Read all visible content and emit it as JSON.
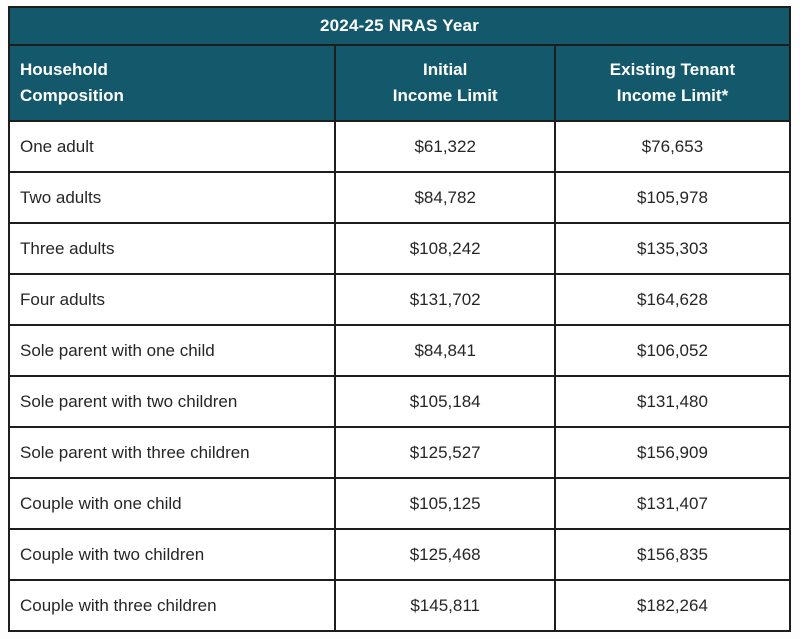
{
  "table": {
    "title": "2024-25 NRAS Year",
    "columns": [
      {
        "label": "Household\nComposition"
      },
      {
        "label": "Initial\nIncome Limit"
      },
      {
        "label": "Existing Tenant\nIncome Limit*"
      }
    ],
    "rows": [
      {
        "household": "One adult",
        "initial": "$61,322",
        "existing": "$76,653"
      },
      {
        "household": "Two adults",
        "initial": "$84,782",
        "existing": "$105,978"
      },
      {
        "household": "Three adults",
        "initial": "$108,242",
        "existing": "$135,303"
      },
      {
        "household": "Four adults",
        "initial": "$131,702",
        "existing": "$164,628"
      },
      {
        "household": "Sole parent with one child",
        "initial": "$84,841",
        "existing": "$106,052"
      },
      {
        "household": "Sole parent with two children",
        "initial": "$105,184",
        "existing": "$131,480"
      },
      {
        "household": "Sole parent with three children",
        "initial": "$125,527",
        "existing": "$156,909"
      },
      {
        "household": "Couple with one child",
        "initial": "$105,125",
        "existing": "$131,407"
      },
      {
        "household": "Couple with two children",
        "initial": "$125,468",
        "existing": "$156,835"
      },
      {
        "household": "Couple with three children",
        "initial": "$145,811",
        "existing": "$182,264"
      }
    ]
  },
  "colors": {
    "header_teal": "#14596B",
    "border": "#1D1D1D",
    "header_text": "#FFFFFF",
    "body_text": "#262626",
    "page_background": "#FDFDFD"
  }
}
